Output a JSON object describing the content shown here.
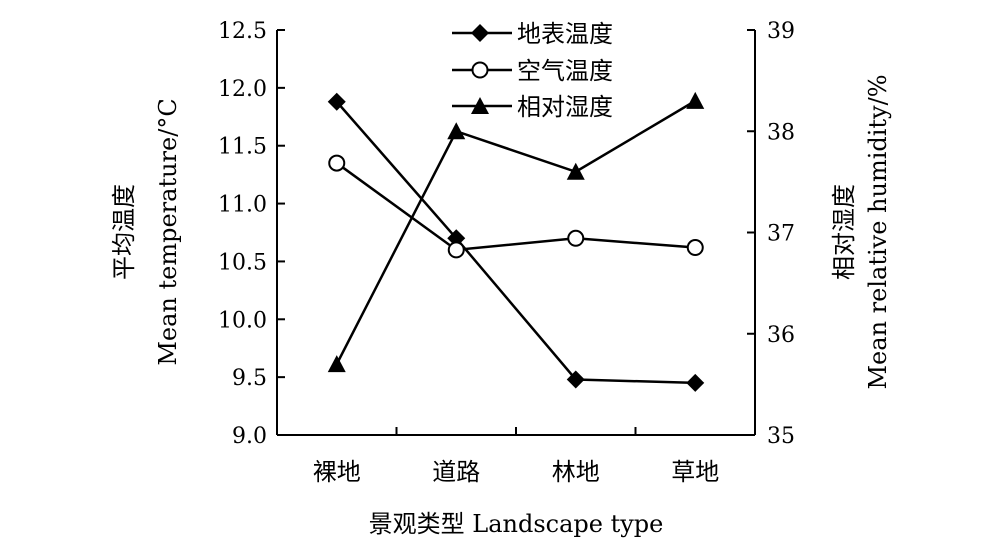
{
  "chart_data": {
    "type": "line",
    "categories": [
      "裸地",
      "道路",
      "林地",
      "草地"
    ],
    "xlabel": "景观类型 Landscape type",
    "ylabel_left_cn": "平均温度",
    "ylabel_left_en": "Mean temperature/°C",
    "ylabel_right_cn": "相对湿度",
    "ylabel_right_en": "Mean relative humidity/%",
    "ylim_left": [
      9.0,
      12.5
    ],
    "ylim_right": [
      35,
      39
    ],
    "yticks_left": [
      "9.0",
      "9.5",
      "10.0",
      "10.5",
      "11.0",
      "11.5",
      "12.0",
      "12.5"
    ],
    "yticks_right": [
      "35",
      "36",
      "37",
      "38",
      "39"
    ],
    "grid": false,
    "legend_position": "top-center",
    "series": [
      {
        "name": "地表温度",
        "axis": "left",
        "marker": "diamond-filled",
        "values": [
          11.88,
          10.7,
          9.48,
          9.45
        ]
      },
      {
        "name": "空气温度",
        "axis": "left",
        "marker": "circle-open",
        "values": [
          11.35,
          10.6,
          10.7,
          10.62
        ]
      },
      {
        "name": "相对湿度",
        "axis": "right",
        "marker": "triangle-filled",
        "values": [
          35.7,
          38.0,
          37.6,
          38.3
        ]
      }
    ],
    "line_color": "#000000"
  }
}
